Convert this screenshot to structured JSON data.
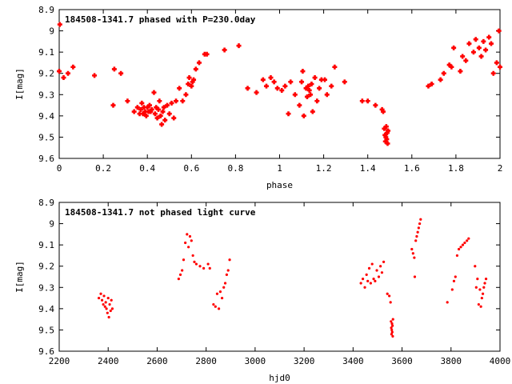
{
  "colors": {
    "marker": "#ff0000",
    "axis": "#000000",
    "background": "#ffffff"
  },
  "chart_data": [
    {
      "type": "scatter",
      "title": "184508-1341.7 phased with P=230.0day",
      "xlabel": "phase",
      "ylabel": "I[mag]",
      "xlim": [
        0,
        2
      ],
      "ylim": [
        9.6,
        8.9
      ],
      "y_inverted": true,
      "grid": false,
      "marker": "plus",
      "xticks": [
        "0",
        "0.2",
        "0.4",
        "0.6",
        "0.8",
        "1",
        "1.2",
        "1.4",
        "1.6",
        "1.8",
        "2"
      ],
      "yticks": [
        "8.9",
        "9",
        "9.1",
        "9.2",
        "9.3",
        "9.4",
        "9.5",
        "9.6"
      ],
      "points": [
        [
          0.0,
          9.19
        ],
        [
          0.003,
          8.97
        ],
        [
          0.02,
          9.22
        ],
        [
          0.04,
          9.2
        ],
        [
          0.063,
          9.17
        ],
        [
          0.16,
          9.21
        ],
        [
          0.245,
          9.35
        ],
        [
          0.25,
          9.18
        ],
        [
          0.28,
          9.2
        ],
        [
          0.31,
          9.33
        ],
        [
          0.34,
          9.38
        ],
        [
          0.355,
          9.36
        ],
        [
          0.365,
          9.39
        ],
        [
          0.37,
          9.37
        ],
        [
          0.375,
          9.34
        ],
        [
          0.38,
          9.39
        ],
        [
          0.385,
          9.36
        ],
        [
          0.39,
          9.38
        ],
        [
          0.395,
          9.4
        ],
        [
          0.4,
          9.36
        ],
        [
          0.405,
          9.38
        ],
        [
          0.41,
          9.35
        ],
        [
          0.415,
          9.38
        ],
        [
          0.42,
          9.37
        ],
        [
          0.43,
          9.29
        ],
        [
          0.435,
          9.39
        ],
        [
          0.44,
          9.36
        ],
        [
          0.445,
          9.41
        ],
        [
          0.45,
          9.37
        ],
        [
          0.455,
          9.33
        ],
        [
          0.46,
          9.4
        ],
        [
          0.465,
          9.44
        ],
        [
          0.47,
          9.38
        ],
        [
          0.475,
          9.36
        ],
        [
          0.48,
          9.42
        ],
        [
          0.49,
          9.35
        ],
        [
          0.5,
          9.39
        ],
        [
          0.51,
          9.34
        ],
        [
          0.52,
          9.41
        ],
        [
          0.53,
          9.33
        ],
        [
          0.545,
          9.27
        ],
        [
          0.56,
          9.33
        ],
        [
          0.575,
          9.3
        ],
        [
          0.585,
          9.25
        ],
        [
          0.59,
          9.22
        ],
        [
          0.6,
          9.26
        ],
        [
          0.605,
          9.24
        ],
        [
          0.61,
          9.23
        ],
        [
          0.62,
          9.18
        ],
        [
          0.635,
          9.15
        ],
        [
          0.66,
          9.11
        ],
        [
          0.67,
          9.11
        ],
        [
          0.75,
          9.09
        ],
        [
          0.815,
          9.07
        ],
        [
          0.855,
          9.27
        ],
        [
          0.895,
          9.29
        ],
        [
          0.925,
          9.23
        ],
        [
          0.94,
          9.26
        ],
        [
          0.96,
          9.22
        ],
        [
          0.975,
          9.24
        ],
        [
          0.99,
          9.27
        ],
        [
          1.01,
          9.28
        ],
        [
          1.025,
          9.26
        ],
        [
          1.04,
          9.39
        ],
        [
          1.05,
          9.24
        ],
        [
          1.07,
          9.3
        ],
        [
          1.09,
          9.35
        ],
        [
          1.1,
          9.24
        ],
        [
          1.105,
          9.19
        ],
        [
          1.11,
          9.4
        ],
        [
          1.12,
          9.27
        ],
        [
          1.125,
          9.31
        ],
        [
          1.13,
          9.26
        ],
        [
          1.135,
          9.28
        ],
        [
          1.14,
          9.3
        ],
        [
          1.145,
          9.25
        ],
        [
          1.15,
          9.38
        ],
        [
          1.16,
          9.22
        ],
        [
          1.17,
          9.33
        ],
        [
          1.18,
          9.27
        ],
        [
          1.19,
          9.23
        ],
        [
          1.205,
          9.23
        ],
        [
          1.215,
          9.3
        ],
        [
          1.235,
          9.26
        ],
        [
          1.25,
          9.17
        ],
        [
          1.295,
          9.24
        ],
        [
          1.375,
          9.33
        ],
        [
          1.4,
          9.33
        ],
        [
          1.435,
          9.35
        ],
        [
          1.465,
          9.37
        ],
        [
          1.47,
          9.38
        ],
        [
          1.475,
          9.46
        ],
        [
          1.478,
          9.49
        ],
        [
          1.48,
          9.52
        ],
        [
          1.482,
          9.5
        ],
        [
          1.484,
          9.45
        ],
        [
          1.486,
          9.51
        ],
        [
          1.488,
          9.48
        ],
        [
          1.49,
          9.53
        ],
        [
          1.492,
          9.47
        ],
        [
          1.675,
          9.26
        ],
        [
          1.69,
          9.25
        ],
        [
          1.73,
          9.23
        ],
        [
          1.745,
          9.2
        ],
        [
          1.77,
          9.16
        ],
        [
          1.78,
          9.17
        ],
        [
          1.79,
          9.08
        ],
        [
          1.82,
          9.19
        ],
        [
          1.83,
          9.12
        ],
        [
          1.845,
          9.14
        ],
        [
          1.86,
          9.06
        ],
        [
          1.88,
          9.1
        ],
        [
          1.89,
          9.04
        ],
        [
          1.905,
          9.08
        ],
        [
          1.915,
          9.12
        ],
        [
          1.925,
          9.05
        ],
        [
          1.935,
          9.09
        ],
        [
          1.95,
          9.03
        ],
        [
          1.96,
          9.06
        ],
        [
          1.97,
          9.2
        ],
        [
          1.985,
          9.15
        ],
        [
          1.995,
          9.0
        ],
        [
          2.0,
          9.17
        ]
      ]
    },
    {
      "type": "scatter",
      "title": "184508-1341.7 not phased light curve",
      "xlabel": "hjd0",
      "ylabel": "I[mag]",
      "xlim": [
        2200,
        4000
      ],
      "ylim": [
        9.6,
        8.9
      ],
      "y_inverted": true,
      "grid": false,
      "marker": "dot",
      "xticks": [
        "2200",
        "2400",
        "2600",
        "2800",
        "3000",
        "3200",
        "3400",
        "3600",
        "3800",
        "4000"
      ],
      "yticks": [
        "8.9",
        "9",
        "9.1",
        "9.2",
        "9.3",
        "9.4",
        "9.5",
        "9.6"
      ],
      "points": [
        [
          2362,
          9.35
        ],
        [
          2370,
          9.33
        ],
        [
          2375,
          9.36
        ],
        [
          2380,
          9.38
        ],
        [
          2383,
          9.34
        ],
        [
          2387,
          9.39
        ],
        [
          2390,
          9.37
        ],
        [
          2393,
          9.4
        ],
        [
          2397,
          9.42
        ],
        [
          2400,
          9.35
        ],
        [
          2403,
          9.44
        ],
        [
          2406,
          9.38
        ],
        [
          2410,
          9.41
        ],
        [
          2413,
          9.36
        ],
        [
          2417,
          9.4
        ],
        [
          2688,
          9.26
        ],
        [
          2695,
          9.24
        ],
        [
          2702,
          9.22
        ],
        [
          2708,
          9.17
        ],
        [
          2715,
          9.09
        ],
        [
          2722,
          9.05
        ],
        [
          2728,
          9.11
        ],
        [
          2734,
          9.06
        ],
        [
          2740,
          9.08
        ],
        [
          2746,
          9.15
        ],
        [
          2752,
          9.18
        ],
        [
          2760,
          9.19
        ],
        [
          2775,
          9.2
        ],
        [
          2790,
          9.21
        ],
        [
          2808,
          9.19
        ],
        [
          2815,
          9.21
        ],
        [
          2830,
          9.38
        ],
        [
          2838,
          9.39
        ],
        [
          2845,
          9.33
        ],
        [
          2852,
          9.4
        ],
        [
          2858,
          9.32
        ],
        [
          2865,
          9.35
        ],
        [
          2872,
          9.3
        ],
        [
          2878,
          9.28
        ],
        [
          2884,
          9.24
        ],
        [
          2890,
          9.22
        ],
        [
          2896,
          9.17
        ],
        [
          3432,
          9.28
        ],
        [
          3440,
          9.26
        ],
        [
          3448,
          9.3
        ],
        [
          3455,
          9.24
        ],
        [
          3460,
          9.27
        ],
        [
          3466,
          9.21
        ],
        [
          3472,
          9.28
        ],
        [
          3478,
          9.19
        ],
        [
          3484,
          9.26
        ],
        [
          3490,
          9.27
        ],
        [
          3497,
          9.22
        ],
        [
          3505,
          9.25
        ],
        [
          3512,
          9.2
        ],
        [
          3518,
          9.23
        ],
        [
          3525,
          9.18
        ],
        [
          3540,
          9.33
        ],
        [
          3548,
          9.34
        ],
        [
          3553,
          9.37
        ],
        [
          3555,
          9.46
        ],
        [
          3556,
          9.49
        ],
        [
          3557,
          9.52
        ],
        [
          3558,
          9.5
        ],
        [
          3559,
          9.47
        ],
        [
          3560,
          9.51
        ],
        [
          3561,
          9.48
        ],
        [
          3562,
          9.53
        ],
        [
          3563,
          9.45
        ],
        [
          3640,
          9.12
        ],
        [
          3645,
          9.14
        ],
        [
          3650,
          9.16
        ],
        [
          3652,
          9.25
        ],
        [
          3656,
          9.08
        ],
        [
          3660,
          9.06
        ],
        [
          3664,
          9.04
        ],
        [
          3668,
          9.02
        ],
        [
          3672,
          9.0
        ],
        [
          3676,
          8.98
        ],
        [
          3785,
          9.37
        ],
        [
          3805,
          9.31
        ],
        [
          3812,
          9.27
        ],
        [
          3818,
          9.25
        ],
        [
          3825,
          9.15
        ],
        [
          3832,
          9.12
        ],
        [
          3840,
          9.11
        ],
        [
          3848,
          9.1
        ],
        [
          3856,
          9.09
        ],
        [
          3865,
          9.08
        ],
        [
          3872,
          9.07
        ],
        [
          3898,
          9.2
        ],
        [
          3903,
          9.3
        ],
        [
          3908,
          9.26
        ],
        [
          3913,
          9.38
        ],
        [
          3918,
          9.31
        ],
        [
          3922,
          9.39
        ],
        [
          3926,
          9.35
        ],
        [
          3930,
          9.33
        ],
        [
          3934,
          9.3
        ],
        [
          3938,
          9.28
        ],
        [
          3943,
          9.26
        ]
      ]
    }
  ]
}
